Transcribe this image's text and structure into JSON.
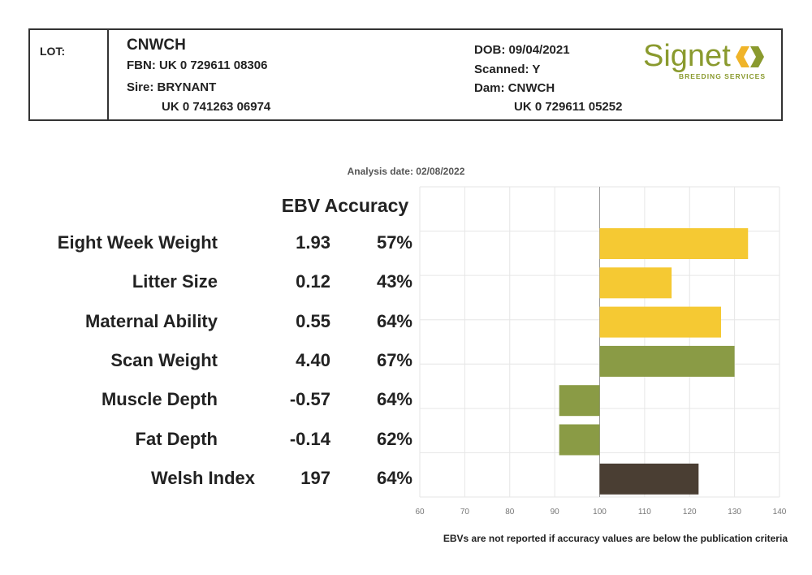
{
  "header": {
    "lot_label": "LOT:",
    "name": "CNWCH",
    "fbn": "FBN: UK 0 729611 08306",
    "sire": "Sire: BRYNANT",
    "sire_id": "UK 0 741263 06974",
    "dob": "DOB: 09/04/2021",
    "scanned": "Scanned: Y",
    "dam": "Dam: CNWCH",
    "dam_id": "UK 0 729611 05252"
  },
  "logo": {
    "name": "Signet",
    "tagline": "BREEDING SERVICES",
    "colors": [
      "#8a9a2e",
      "#f0b429"
    ]
  },
  "analysis_date": "Analysis date: 02/08/2022",
  "column_header": "EBV Accuracy",
  "rows": [
    {
      "trait": "Eight Week Weight",
      "ebv": "1.93",
      "accuracy": "57%"
    },
    {
      "trait": "Litter Size",
      "ebv": "0.12",
      "accuracy": "43%"
    },
    {
      "trait": "Maternal Ability",
      "ebv": "0.55",
      "accuracy": "64%"
    },
    {
      "trait": "Scan Weight",
      "ebv": "4.40",
      "accuracy": "67%"
    },
    {
      "trait": "Muscle Depth",
      "ebv": "-0.57",
      "accuracy": "64%"
    },
    {
      "trait": "Fat Depth",
      "ebv": "-0.14",
      "accuracy": "62%"
    },
    {
      "trait": "Welsh Index",
      "ebv": "197",
      "accuracy": "64%"
    }
  ],
  "chart_data": {
    "type": "bar",
    "orientation": "horizontal",
    "categories": [
      "Eight Week Weight",
      "Litter Size",
      "Maternal Ability",
      "Scan Weight",
      "Muscle Depth",
      "Fat Depth",
      "Welsh Index"
    ],
    "values": [
      133,
      116,
      127,
      130,
      91,
      91,
      122
    ],
    "baseline": 100,
    "xlim": [
      60,
      140
    ],
    "xticks": [
      60,
      70,
      80,
      90,
      100,
      110,
      120,
      130,
      140
    ],
    "grid": true,
    "bar_colors": [
      "#f5c933",
      "#f5c933",
      "#f5c933",
      "#8a9b45",
      "#8a9b45",
      "#8a9b45",
      "#4a3e33"
    ]
  },
  "footnote": "EBVs are not reported if accuracy values are below the publication criteria"
}
